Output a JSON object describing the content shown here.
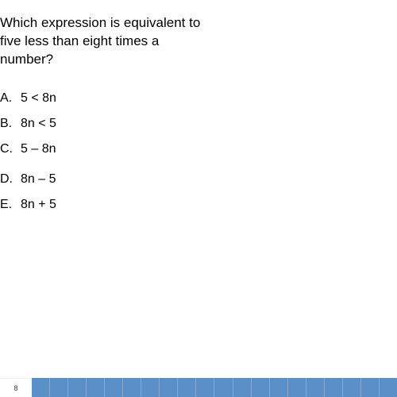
{
  "question": {
    "line1": "Which expression is equivalent to",
    "line2": "five less than eight times a",
    "line3": "number?"
  },
  "choices": [
    {
      "letter": "A.",
      "text": "5 < 8n"
    },
    {
      "letter": "B.",
      "text": "8n < 5"
    },
    {
      "letter": "C.",
      "text": "5 – 8n"
    },
    {
      "letter": "D.",
      "text": "8n – 5"
    },
    {
      "letter": "E.",
      "text": "8n + 5"
    }
  ],
  "player": {
    "page_number": "8",
    "tick_count": 20,
    "track_color": "#5a8fc7",
    "tick_divider_color": "rgba(255,255,255,0.25)"
  },
  "typography": {
    "question_fontsize": 17,
    "choice_fontsize": 16,
    "font_family": "Arial",
    "text_color": "#000000",
    "background_color": "#ffffff"
  }
}
